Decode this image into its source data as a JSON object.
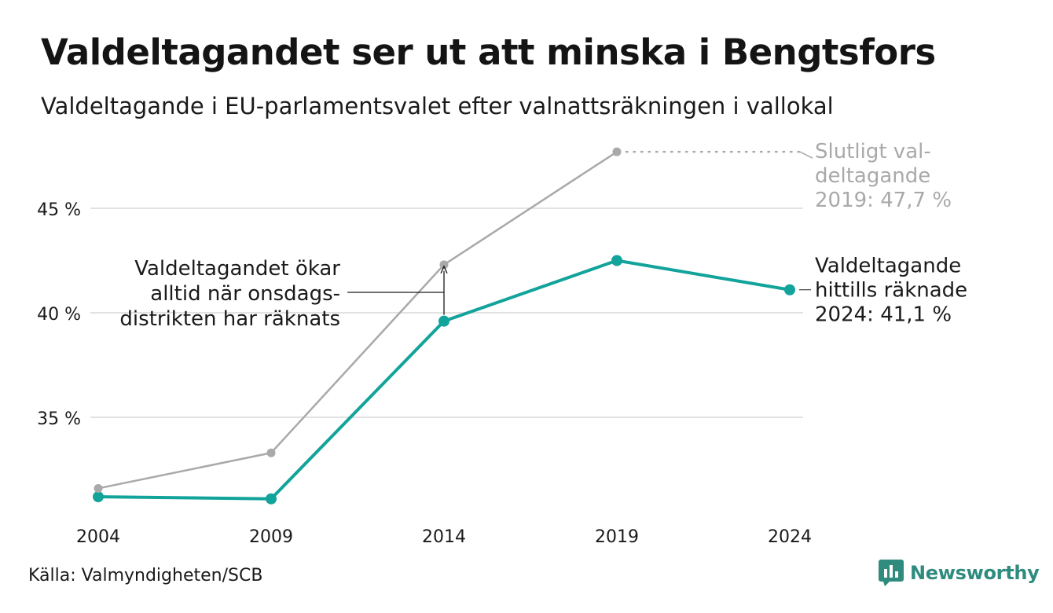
{
  "title": "Valdeltagandet ser ut att minska i Bengtsfors",
  "subtitle": "Valdeltagande i EU-parlamentsvalet efter valnattsräkningen i vallokal",
  "source": "Källa: Valmyndigheten/SCB",
  "brand": "Newsworthy",
  "colors": {
    "counted": "#12a39a",
    "final": "#a9a9a9",
    "grid": "#e2e2e2",
    "text": "#1a1a1a",
    "final_label": "#a9a9a9",
    "brand": "#2e8b7e"
  },
  "chart_data": {
    "type": "line",
    "x": [
      2004,
      2009,
      2014,
      2019,
      2024
    ],
    "xtick_labels": [
      "2004",
      "2009",
      "2014",
      "2019",
      "2024"
    ],
    "ylim": [
      30,
      48.5
    ],
    "yticks": [
      35,
      40,
      45
    ],
    "ytick_labels": [
      "35 %",
      "40 %",
      "45 %"
    ],
    "grid": true,
    "series": [
      {
        "name": "Valdeltagande hittills räknade",
        "key": "counted",
        "values": [
          31.2,
          31.1,
          39.6,
          42.5,
          41.1
        ]
      },
      {
        "name": "Slutligt valdeltagande",
        "key": "final",
        "values": [
          31.6,
          33.3,
          42.3,
          47.7,
          null
        ]
      }
    ],
    "annotations": {
      "final_label": [
        "Slutligt val-",
        "deltagande",
        "2019: 47,7 %"
      ],
      "counted_label": [
        "Valdeltagande",
        "hittills räknade",
        "2024: 41,1 %"
      ],
      "note": [
        "Valdeltagandet ökar",
        "alltid när onsdags-",
        "distrikten har räknats"
      ]
    }
  }
}
